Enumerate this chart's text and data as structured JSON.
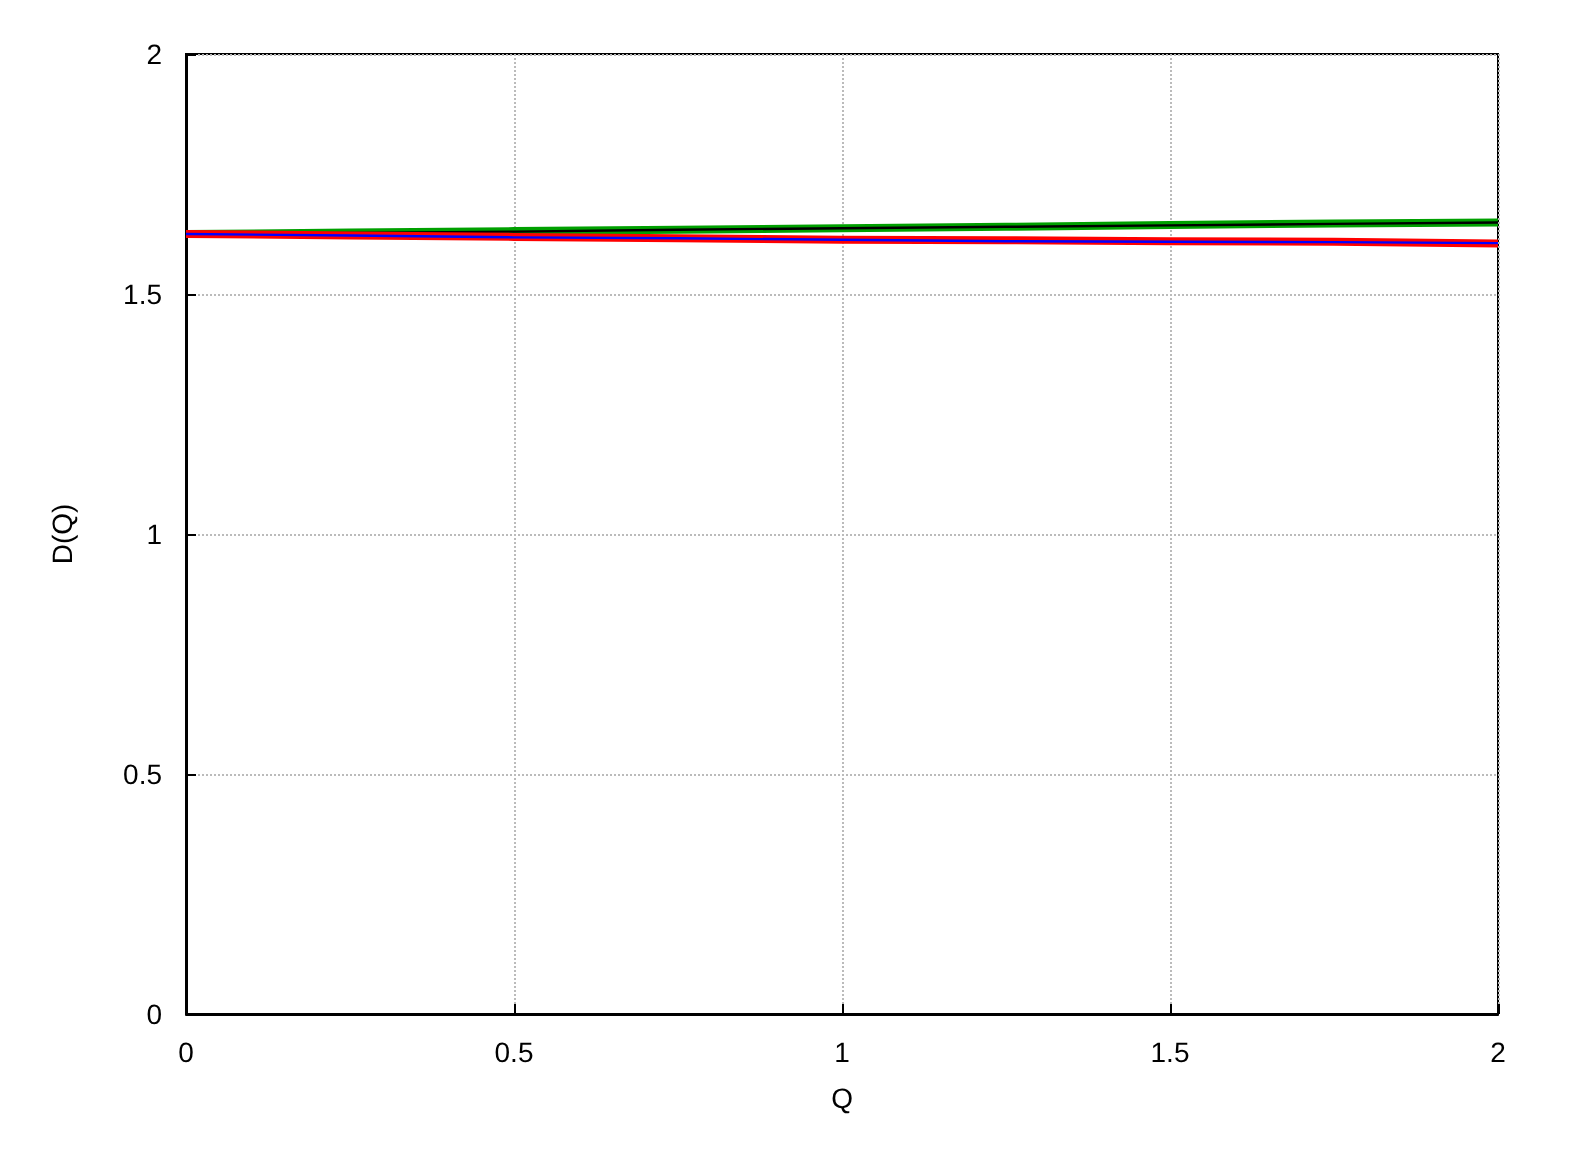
{
  "chart_data": {
    "type": "line",
    "xlabel": "Q",
    "ylabel": "D(Q)",
    "xlim": [
      0,
      2
    ],
    "ylim": [
      0,
      2
    ],
    "xticks": [
      0,
      0.5,
      1,
      1.5,
      2
    ],
    "yticks": [
      0,
      0.5,
      1,
      1.5,
      2
    ],
    "grid": true,
    "marker": "none",
    "line_style": "solid",
    "x": [
      0,
      0.25,
      0.5,
      0.75,
      1,
      1.25,
      1.5,
      1.75,
      2
    ],
    "series": [
      {
        "color": "#00a000",
        "values": [
          1.625,
          1.628,
          1.631,
          1.634,
          1.637,
          1.64,
          1.644,
          1.647,
          1.649
        ]
      },
      {
        "color": "#000000",
        "values": [
          1.625,
          1.627,
          1.63,
          1.634,
          1.637,
          1.64,
          1.643,
          1.646,
          1.649
        ]
      },
      {
        "color": "#ff0000",
        "values": [
          1.625,
          1.622,
          1.619,
          1.616,
          1.613,
          1.612,
          1.61,
          1.609,
          1.605
        ]
      },
      {
        "color": "#0000ff",
        "values": [
          1.625,
          1.622,
          1.618,
          1.616,
          1.613,
          1.61,
          1.609,
          1.608,
          1.606
        ]
      }
    ]
  }
}
